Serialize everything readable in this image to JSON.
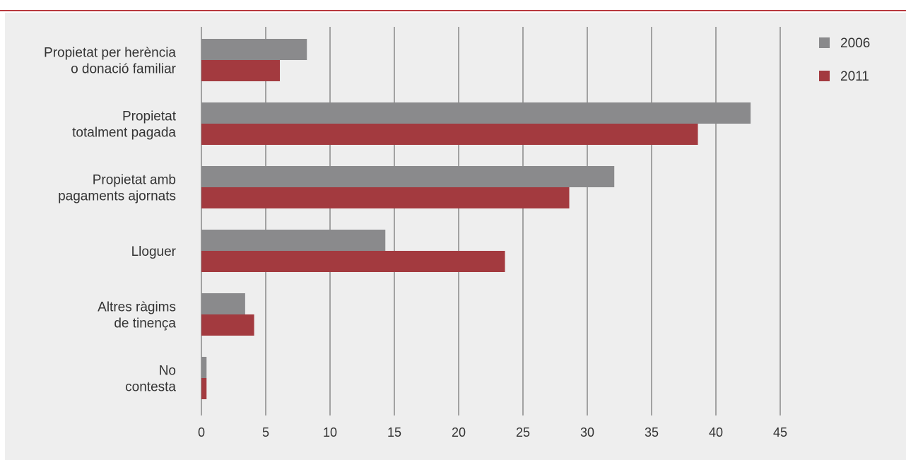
{
  "colors": {
    "rule": "#b8393e",
    "panel_background": "#eeeeee",
    "grid": "#555555",
    "text": "#333333"
  },
  "chart_data": {
    "type": "bar",
    "orientation": "horizontal",
    "title": "",
    "xlabel": "",
    "ylabel": "",
    "categories": [
      [
        "Propietat per herència",
        "o donació familiar"
      ],
      [
        "Propietat",
        "totalment pagada"
      ],
      [
        "Propietat amb",
        "pagaments ajornats"
      ],
      [
        "Lloguer"
      ],
      [
        "Altres ràgims",
        "de tinença"
      ],
      [
        "No",
        "contesta"
      ]
    ],
    "series": [
      {
        "name": "2006",
        "color": "#8a8a8c",
        "values": [
          8.2,
          42.7,
          32.1,
          14.3,
          3.4,
          0.4
        ]
      },
      {
        "name": "2011",
        "color": "#a33a3f",
        "values": [
          6.1,
          38.6,
          28.6,
          23.6,
          4.1,
          0.4
        ]
      }
    ],
    "xlim": [
      0,
      45
    ],
    "xticks": [
      "0",
      "5",
      "10",
      "15",
      "20",
      "25",
      "30",
      "35",
      "40",
      "45"
    ],
    "grid": true,
    "legend_position": "top-right"
  }
}
